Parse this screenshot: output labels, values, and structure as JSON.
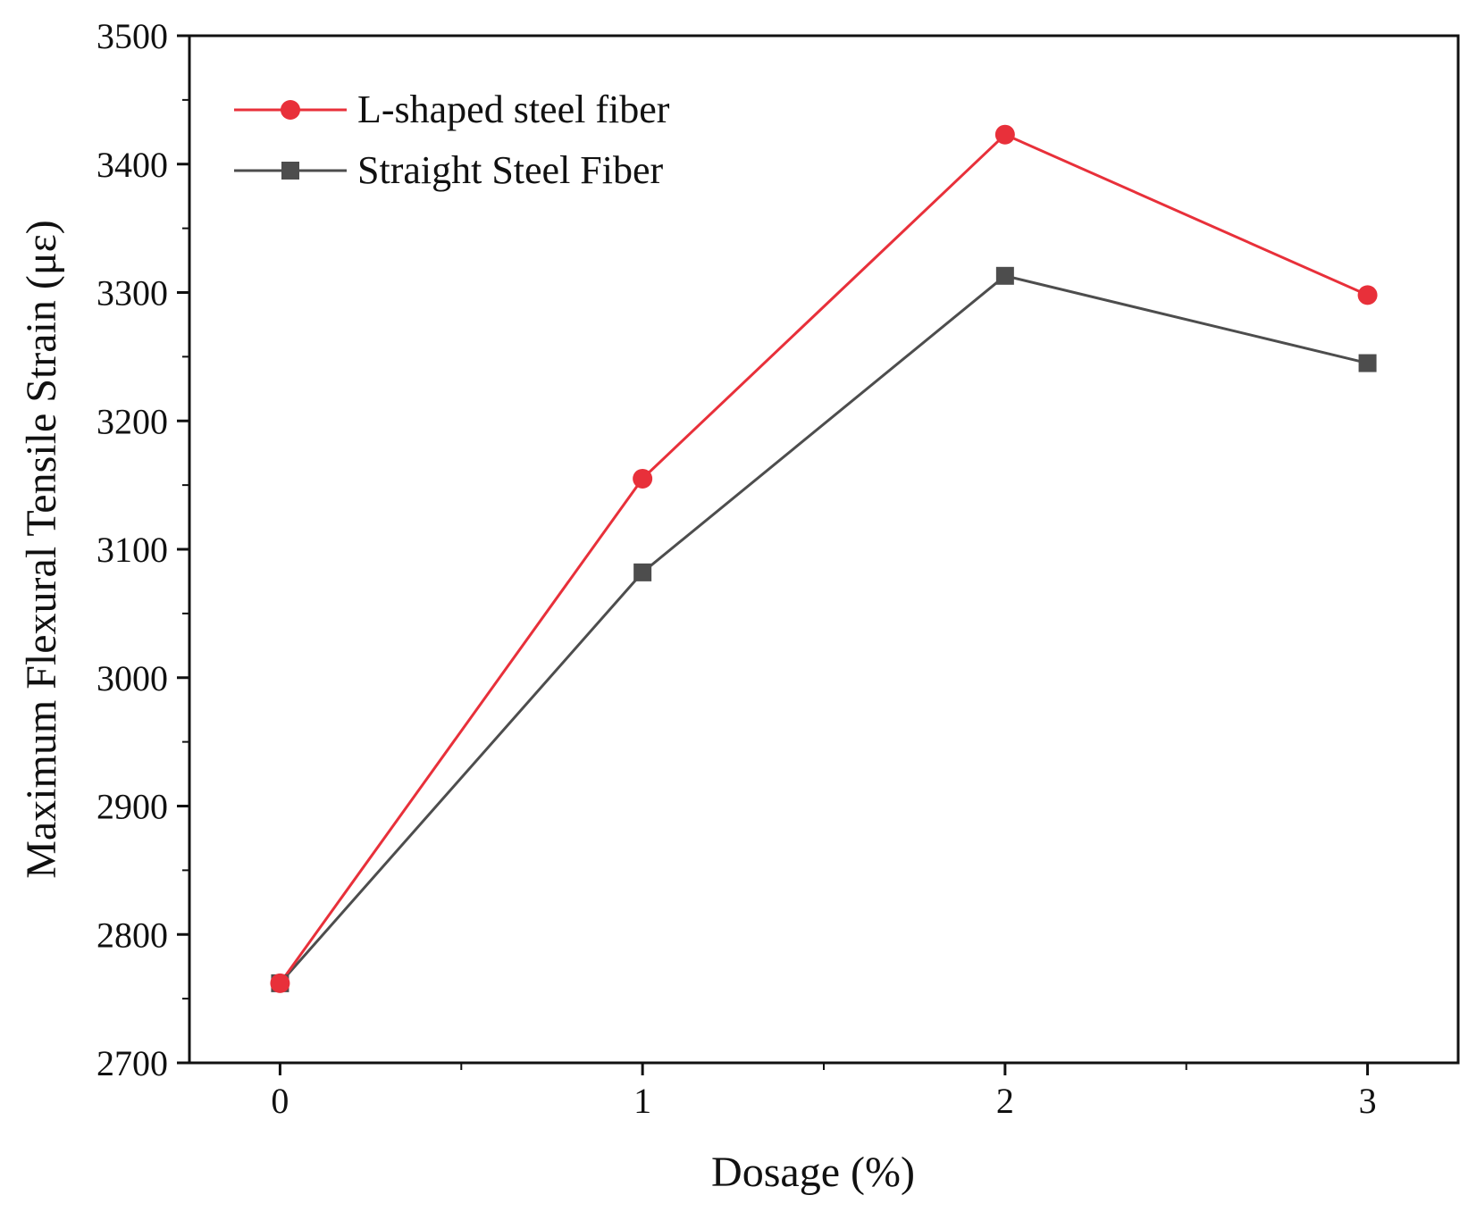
{
  "chart_data": {
    "type": "line",
    "title": "",
    "xlabel": "Dosage (%)",
    "ylabel": "Maximum Flexural Tensile Strain (με)",
    "x": [
      0,
      1,
      2,
      3
    ],
    "xticks": [
      "0",
      "1",
      "2",
      "3"
    ],
    "xlim": [
      -0.25,
      3.25
    ],
    "ylim": [
      2700,
      3500
    ],
    "yticks": [
      2700,
      2800,
      2900,
      3000,
      3100,
      3200,
      3300,
      3400,
      3500
    ],
    "grid": false,
    "legend_position": "top-left",
    "series": [
      {
        "name": "L-shaped steel fiber",
        "values": [
          2762,
          3155,
          3423,
          3298
        ],
        "color": "#e8303a",
        "marker": "circle"
      },
      {
        "name": "Straight Steel Fiber",
        "values": [
          2762,
          3082,
          3313,
          3245
        ],
        "color": "#4d4d4d",
        "marker": "square"
      }
    ]
  }
}
